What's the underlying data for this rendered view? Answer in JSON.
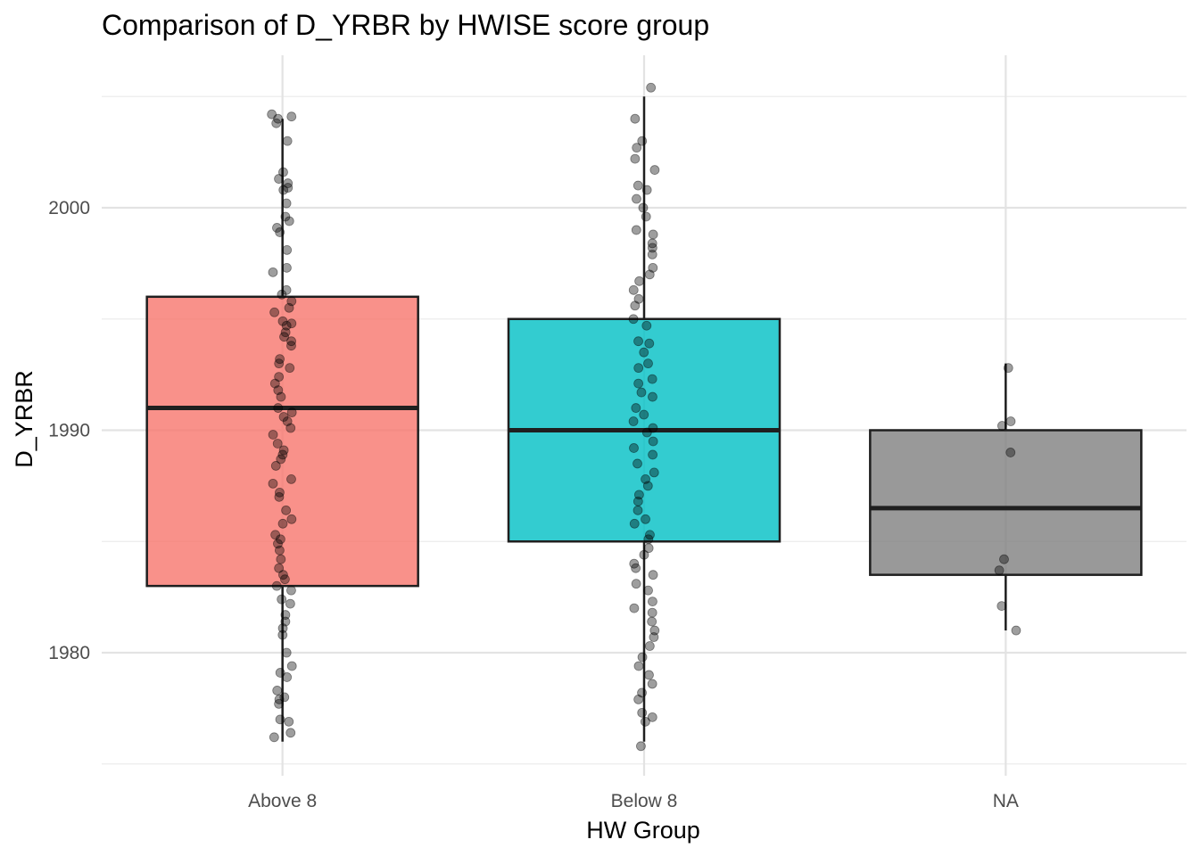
{
  "chart_data": {
    "type": "boxplot",
    "title": "Comparison of D_YRBR by HWISE score group",
    "xlabel": "HW Group",
    "ylabel": "D_YRBR",
    "categories": [
      "Above 8",
      "Below 8",
      "NA"
    ],
    "ylim": [
      1975,
      2006
    ],
    "yticks": [
      1980,
      1990,
      2000
    ],
    "grid": true,
    "legend": "none",
    "colors": {
      "Above 8": "#f8766d",
      "Below 8": "#00bfc4",
      "NA": "#7f7f7f"
    },
    "boxes": [
      {
        "group": "Above 8",
        "min": 1976,
        "q1": 1983,
        "median": 1991,
        "q3": 1996,
        "max": 2004
      },
      {
        "group": "Below 8",
        "min": 1976,
        "q1": 1985,
        "median": 1990,
        "q3": 1995,
        "max": 2005
      },
      {
        "group": "NA",
        "min": 1981,
        "q1": 1983.5,
        "median": 1986.5,
        "q3": 1990,
        "max": 1993
      }
    ],
    "points": {
      "Above 8": [
        2004.2,
        2004.1,
        2004.0,
        2003.8,
        2003.0,
        2001.6,
        2001.3,
        2001.1,
        2000.9,
        2000.8,
        2000.2,
        1999.6,
        1999.4,
        1999.1,
        1998.9,
        1998.1,
        1997.3,
        1997.1,
        1996.3,
        1996.1,
        1995.8,
        1995.5,
        1995.3,
        1994.9,
        1994.8,
        1994.7,
        1994.4,
        1994.2,
        1994.0,
        1993.8,
        1993.2,
        1993.0,
        1992.8,
        1992.4,
        1992.1,
        1991.8,
        1991.5,
        1991.0,
        1990.8,
        1990.6,
        1990.4,
        1990.1,
        1989.8,
        1989.4,
        1989.1,
        1988.9,
        1988.7,
        1988.4,
        1987.8,
        1987.6,
        1987.2,
        1987.0,
        1986.4,
        1986.0,
        1985.8,
        1985.3,
        1985.1,
        1984.9,
        1984.6,
        1984.2,
        1983.8,
        1983.5,
        1983.3,
        1983.0,
        1982.8,
        1982.4,
        1982.2,
        1981.7,
        1981.4,
        1981.1,
        1980.8,
        1980.0,
        1979.4,
        1979.1,
        1978.9,
        1978.3,
        1978.0,
        1977.9,
        1977.7,
        1977.0,
        1976.9,
        1976.4,
        1976.2
      ],
      "Below 8": [
        2005.4,
        2004.0,
        2003.0,
        2002.7,
        2002.2,
        2001.7,
        2001.0,
        2000.8,
        2000.4,
        2000.0,
        1999.6,
        1999.0,
        1998.8,
        1998.4,
        1998.2,
        1997.9,
        1997.3,
        1997.0,
        1996.7,
        1996.3,
        1995.9,
        1995.6,
        1995.0,
        1994.7,
        1994.0,
        1993.9,
        1993.5,
        1993.0,
        1992.8,
        1992.3,
        1992.1,
        1991.7,
        1991.5,
        1991.0,
        1990.7,
        1990.4,
        1990.1,
        1989.9,
        1989.5,
        1989.2,
        1988.9,
        1988.5,
        1988.1,
        1987.8,
        1987.5,
        1987.1,
        1986.8,
        1986.4,
        1986.0,
        1985.8,
        1985.3,
        1985.1,
        1984.7,
        1984.4,
        1984.0,
        1983.8,
        1983.5,
        1983.1,
        1982.8,
        1982.3,
        1982.0,
        1981.8,
        1981.4,
        1981.0,
        1980.7,
        1980.3,
        1979.8,
        1979.4,
        1979.0,
        1978.6,
        1978.2,
        1977.9,
        1977.3,
        1977.1,
        1976.9,
        1975.8
      ],
      "NA": [
        1992.8,
        1990.4,
        1990.2,
        1989.0,
        1984.2,
        1983.7,
        1982.1,
        1981.0
      ]
    }
  }
}
